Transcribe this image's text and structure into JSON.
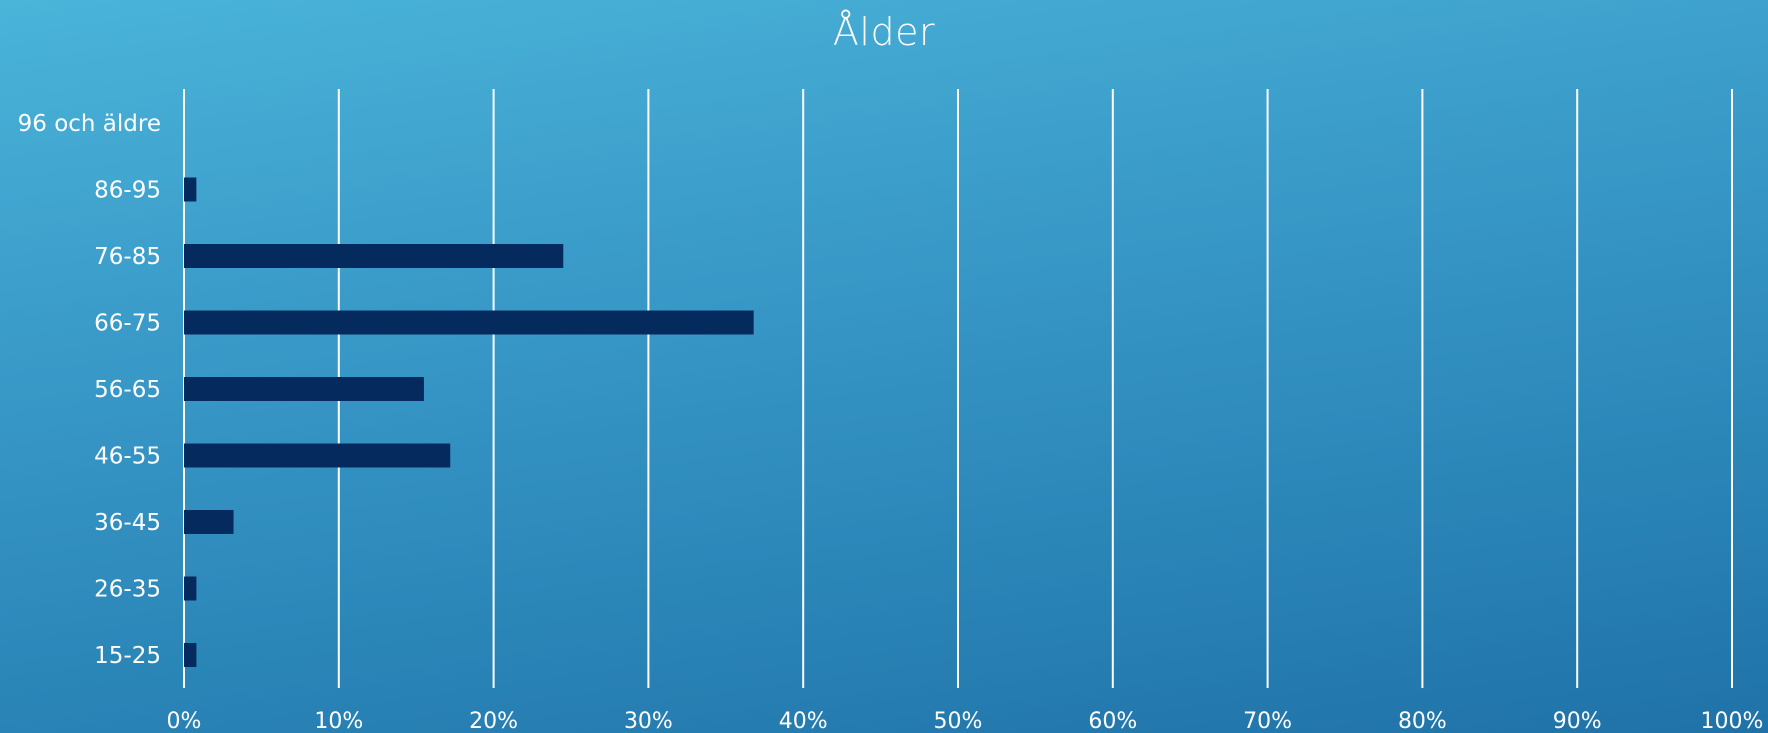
{
  "chart_data": {
    "type": "bar",
    "orientation": "horizontal",
    "title": "Ålder",
    "xlabel": "",
    "ylabel": "",
    "categories": [
      "96 och äldre",
      "86-95",
      "76-85",
      "66-75",
      "56-65",
      "46-55",
      "36-45",
      "26-35",
      "15-25"
    ],
    "values": [
      0,
      0.8,
      24.5,
      36.8,
      15.5,
      17.2,
      3.2,
      0.8,
      0.8
    ],
    "xlim": [
      0,
      100
    ],
    "x_ticks": [
      "0%",
      "10%",
      "20%",
      "30%",
      "40%",
      "50%",
      "60%",
      "70%",
      "80%",
      "90%",
      "100%"
    ],
    "grid": "vertical",
    "legend": "none",
    "colors": {
      "bar": "#052b5e",
      "gridline": "#ffffff",
      "text": "#ffffff"
    }
  }
}
